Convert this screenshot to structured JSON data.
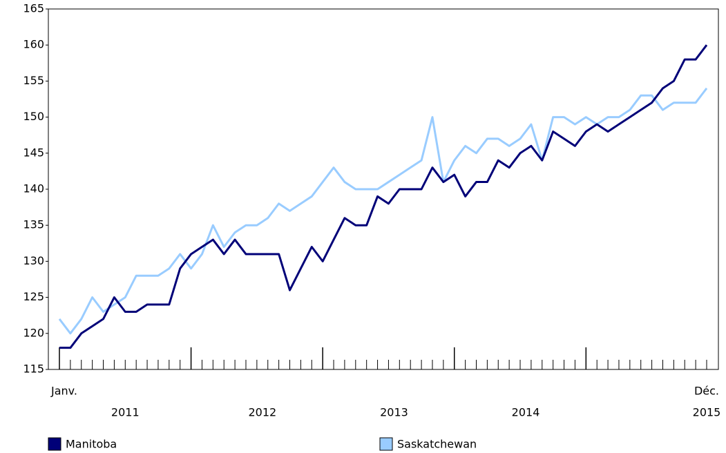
{
  "chart_data": {
    "type": "line",
    "categories": [
      "Janv.",
      null,
      null,
      null,
      null,
      null,
      null,
      null,
      null,
      null,
      null,
      null,
      null,
      null,
      null,
      null,
      null,
      null,
      null,
      null,
      null,
      null,
      null,
      null,
      null,
      null,
      null,
      null,
      null,
      null,
      null,
      null,
      null,
      null,
      null,
      null,
      null,
      null,
      null,
      null,
      null,
      null,
      null,
      null,
      null,
      null,
      null,
      null,
      null,
      null,
      null,
      null,
      null,
      null,
      null,
      null,
      null,
      null,
      null,
      "Déc."
    ],
    "year_labels": [
      "2011",
      "2012",
      "2013",
      "2014",
      "2015"
    ],
    "series": [
      {
        "name": "Manitoba",
        "color": "#000078",
        "values": [
          118,
          118,
          120,
          121,
          122,
          125,
          123,
          123,
          124,
          124,
          124,
          129,
          131,
          132,
          133,
          131,
          133,
          131,
          131,
          131,
          131,
          126,
          129,
          132,
          130,
          133,
          136,
          135,
          135,
          139,
          138,
          140,
          140,
          140,
          143,
          141,
          142,
          139,
          141,
          141,
          144,
          143,
          145,
          146,
          144,
          148,
          147,
          146,
          148,
          149,
          148,
          149,
          150,
          151,
          152,
          154,
          155,
          158,
          158,
          160
        ]
      },
      {
        "name": "Saskatchewan",
        "color": "#99ccff",
        "values": [
          122,
          120,
          122,
          125,
          123,
          124,
          125,
          128,
          128,
          128,
          129,
          131,
          129,
          131,
          135,
          132,
          134,
          135,
          135,
          136,
          138,
          137,
          138,
          139,
          141,
          143,
          141,
          140,
          140,
          140,
          141,
          142,
          143,
          144,
          150,
          141,
          144,
          146,
          145,
          147,
          147,
          146,
          147,
          149,
          144,
          150,
          150,
          149,
          150,
          149,
          150,
          150,
          151,
          153,
          153,
          151,
          152,
          152,
          152,
          154
        ]
      }
    ],
    "ylim": [
      115,
      165
    ],
    "yticks": [
      115,
      120,
      125,
      130,
      135,
      140,
      145,
      150,
      155,
      160,
      165
    ],
    "grid": false
  }
}
